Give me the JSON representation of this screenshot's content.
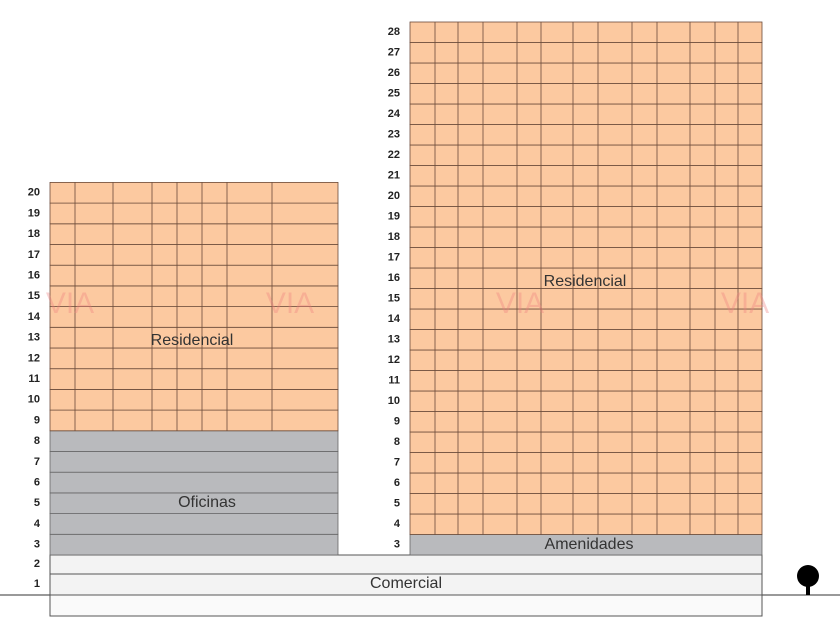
{
  "podium": {
    "floors": [
      1,
      2
    ],
    "label": "Comercial"
  },
  "left_tower": {
    "floors": [
      3,
      4,
      5,
      6,
      7,
      8,
      9,
      10,
      11,
      12,
      13,
      14,
      15,
      16,
      17,
      18,
      19,
      20
    ],
    "residential_label": "Residencial",
    "office_label": "Oficinas"
  },
  "right_tower": {
    "floors": [
      3,
      4,
      5,
      6,
      7,
      8,
      9,
      10,
      11,
      12,
      13,
      14,
      15,
      16,
      17,
      18,
      19,
      20,
      21,
      22,
      23,
      24,
      25,
      26,
      27,
      28
    ],
    "residential_label": "Residencial",
    "amenities_label": "Amenidades"
  },
  "watermark": "VIA"
}
